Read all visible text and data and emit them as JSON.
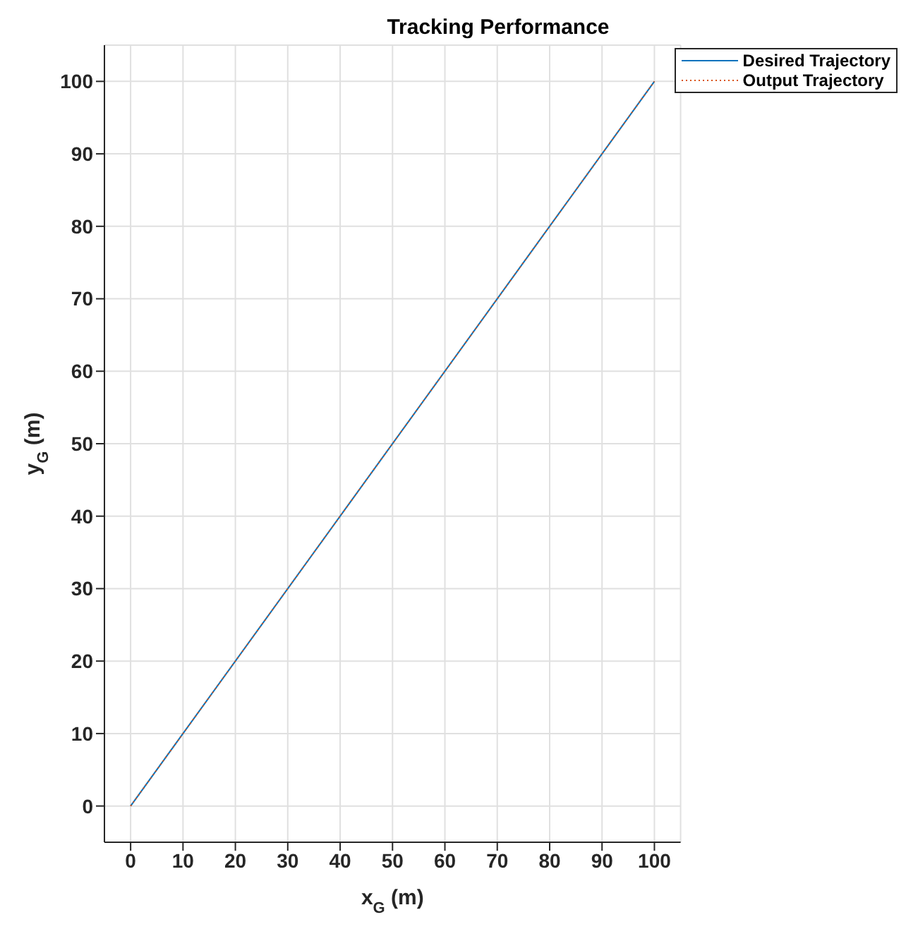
{
  "chart_data": {
    "type": "line",
    "title": "Tracking Performance",
    "xlabel": "x$_{G}$ (m)",
    "ylabel": "y$_{G}$ (m)",
    "x": [
      0,
      100
    ],
    "series": [
      {
        "name": "Desired Trajectory",
        "color": "#0072bd",
        "values": [
          0,
          100
        ],
        "line_style": "solid"
      },
      {
        "name": "Output Trajectory",
        "color": "#d95319",
        "values": [
          0,
          100
        ],
        "line_style": "dotted"
      }
    ],
    "xlim": [
      -5,
      105
    ],
    "xticks": [
      0,
      10,
      20,
      30,
      40,
      50,
      60,
      70,
      80,
      90,
      100
    ],
    "ylim": [
      -5,
      105
    ],
    "yticks": [
      0,
      10,
      20,
      30,
      40,
      50,
      60,
      70,
      80,
      90,
      100
    ],
    "grid": true,
    "legend": "top right",
    "marker": "none"
  }
}
